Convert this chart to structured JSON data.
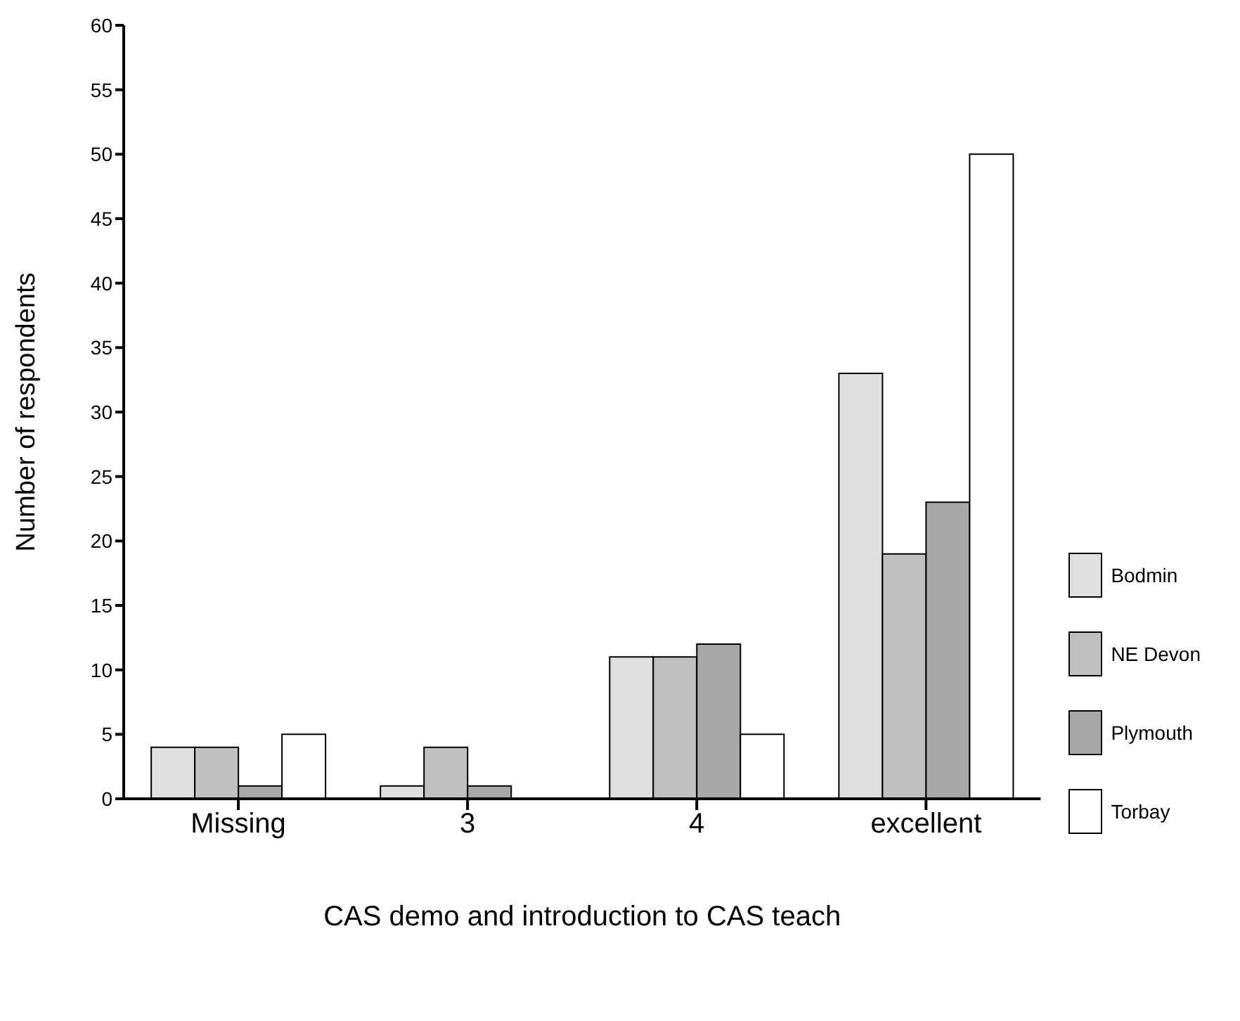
{
  "chart_data": {
    "type": "bar",
    "xlabel": "CAS demo and introduction to CAS teach",
    "ylabel": "Number of respondents",
    "categories": [
      "Missing",
      "3",
      "4",
      "excellent"
    ],
    "series": [
      {
        "name": "Bodmin",
        "color": "#e0e0e0",
        "values": [
          4,
          1,
          11,
          33
        ]
      },
      {
        "name": "NE Devon",
        "color": "#c0c0c0",
        "values": [
          4,
          4,
          11,
          19
        ]
      },
      {
        "name": "Plymouth",
        "color": "#a8a8a8",
        "values": [
          1,
          1,
          12,
          23
        ]
      },
      {
        "name": "Torbay",
        "color": "#ffffff",
        "values": [
          5,
          0,
          5,
          50
        ]
      }
    ],
    "ylim": [
      0,
      60
    ],
    "yticks": [
      0,
      5,
      10,
      15,
      20,
      25,
      30,
      35,
      40,
      45,
      50,
      55,
      60
    ],
    "grid": false,
    "legend": "right"
  }
}
